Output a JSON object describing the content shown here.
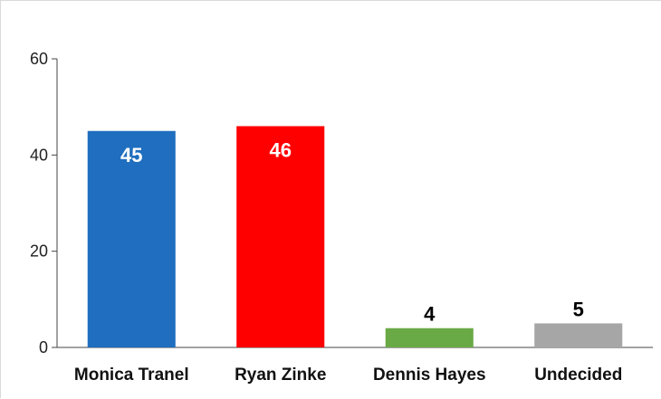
{
  "chart_data": {
    "type": "bar",
    "categories": [
      "Monica Tranel",
      "Ryan Zinke",
      "Dennis Hayes",
      "Undecided"
    ],
    "values": [
      45,
      46,
      4,
      5
    ],
    "colors": [
      "#1f6ebf",
      "#ff0000",
      "#6aaa46",
      "#a6a6a6"
    ],
    "data_label_colors": [
      "#ffffff",
      "#ffffff",
      "#000000",
      "#000000"
    ],
    "data_labels_inside": [
      true,
      true,
      false,
      false
    ],
    "ylim": [
      0,
      60
    ],
    "yticks": [
      0,
      20,
      40,
      60
    ],
    "grid": false,
    "legend": "none"
  }
}
